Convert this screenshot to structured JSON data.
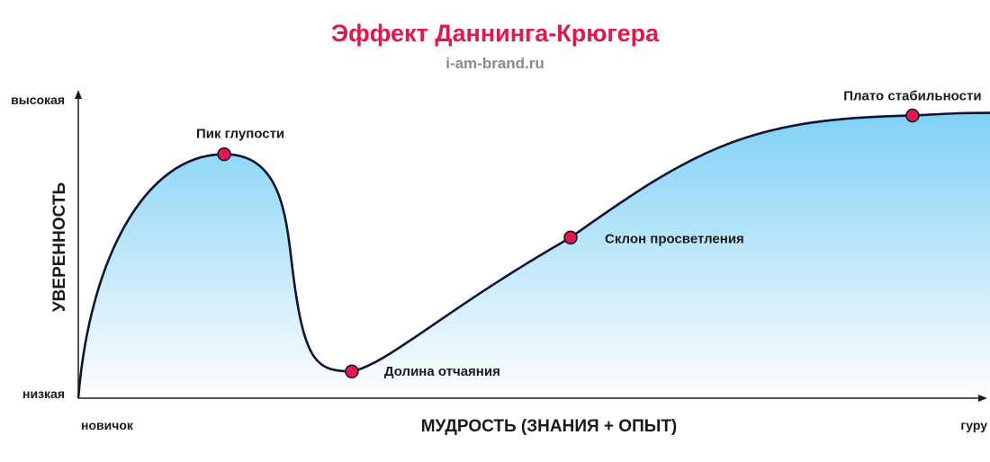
{
  "header": {
    "title": "Эффект Даннинга-Крюгера",
    "subtitle": "i-am-brand.ru"
  },
  "colors": {
    "title": "#e0194a",
    "curve": "#0f1432",
    "point_fill": "#e0194a",
    "area_top": "#7fd0f5",
    "area_bottom": "#ffffff",
    "axis": "#1a1a1a"
  },
  "chart_data": {
    "type": "area",
    "xlabel": "МУДРОСТЬ (ЗНАНИЯ + ОПЫТ)",
    "ylabel": "УВЕРЕННОСТЬ",
    "x_tick_labels": [
      "новичок",
      "гуру"
    ],
    "y_tick_labels": [
      "низкая",
      "высокая"
    ],
    "xlim": [
      0,
      100
    ],
    "ylim": [
      0,
      100
    ],
    "grid": false,
    "points": [
      {
        "name": "Пик глупости",
        "x": 16,
        "y": 82
      },
      {
        "name": "Долина отчаяния",
        "x": 30,
        "y": 9
      },
      {
        "name": "Склон просветления",
        "x": 54,
        "y": 54
      },
      {
        "name": "Плато стабильности",
        "x": 91.5,
        "y": 95
      }
    ]
  }
}
